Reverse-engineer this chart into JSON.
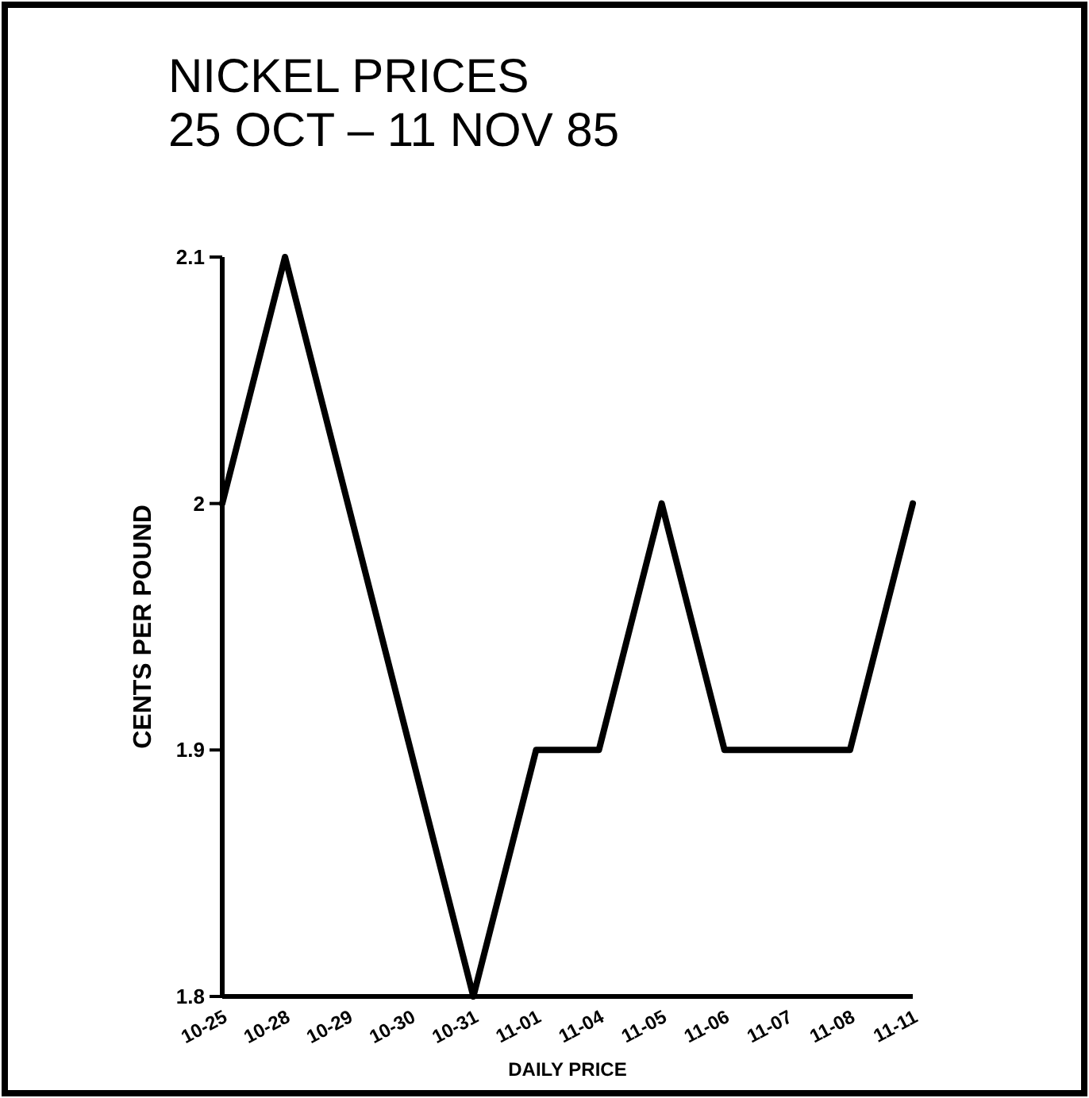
{
  "chart_data": {
    "type": "line",
    "title": "NICKEL PRICES\n25 OCT – 11 NOV 85",
    "xlabel": "DAILY PRICE",
    "ylabel": "CENTS PER POUND",
    "categories": [
      "10-25",
      "10-28",
      "10-29",
      "10-30",
      "10-31",
      "11-01",
      "11-04",
      "11-05",
      "11-06",
      "11-07",
      "11-08",
      "11-11"
    ],
    "series": [
      {
        "color": "#000000",
        "values": [
          2.0,
          2.1,
          2.0,
          1.9,
          1.8,
          1.9,
          1.9,
          2.0,
          1.9,
          1.9,
          1.9,
          2.0
        ]
      }
    ],
    "ylim": [
      1.8,
      2.1
    ],
    "yticks": [
      1.8,
      1.9,
      2,
      2.1
    ],
    "marker": "none",
    "line_style": "solid"
  }
}
